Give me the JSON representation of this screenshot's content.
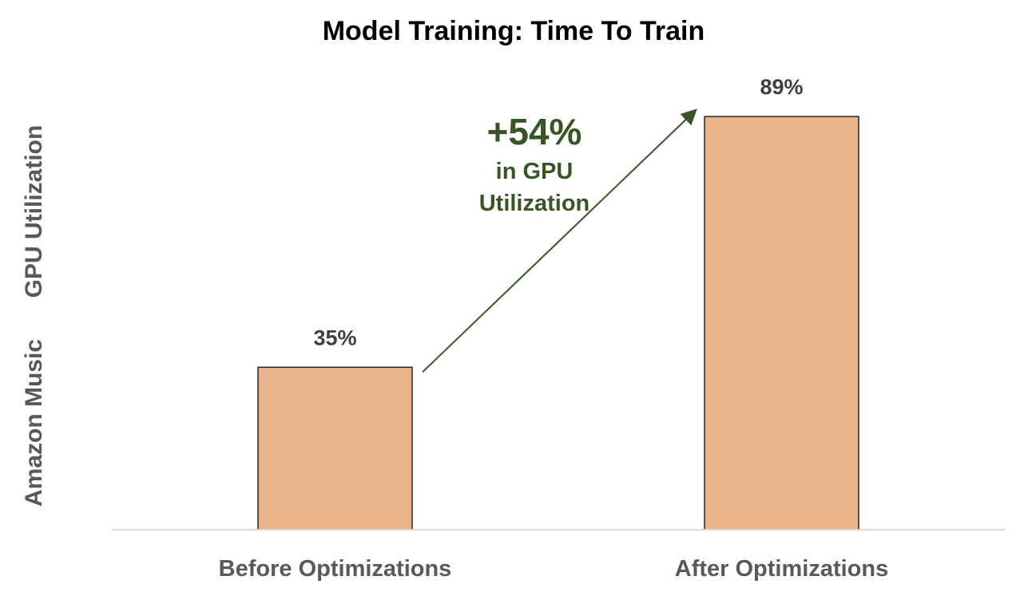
{
  "chart_data": {
    "type": "bar",
    "title": "Model Training: Time To Train",
    "ylabel_line1": "Amazon Music",
    "ylabel_line2": "GPU Utilization",
    "xlabel": "",
    "categories": [
      "Before Optimizations",
      "After Optimizations"
    ],
    "values": [
      35,
      89
    ],
    "value_labels": [
      "35%",
      "89%"
    ],
    "ylim": [
      0,
      100
    ],
    "grid": false,
    "legend": "none",
    "bar_color": "#E9B48A",
    "bar_edge_color": "#262626",
    "annotation": {
      "headline": "+54%",
      "line1": "in GPU",
      "line2": "Utilization",
      "color": "#375623",
      "arrow_from_category": "Before Optimizations",
      "arrow_to_category": "After Optimizations"
    }
  }
}
